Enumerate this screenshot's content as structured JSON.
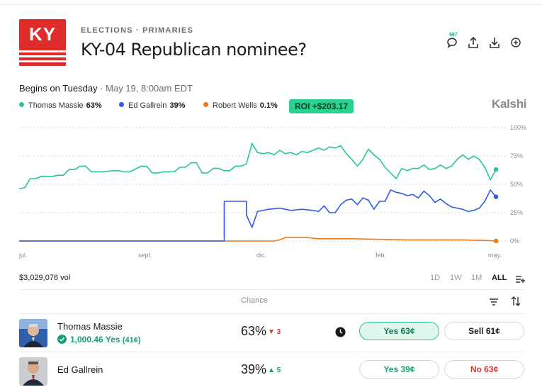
{
  "header": {
    "logo_text": "KY",
    "breadcrumb": "ELECTIONS · PRIMARIES",
    "title": "KY-04 Republican nominee?",
    "comment_count": "597",
    "icons": [
      "comment-icon",
      "share-icon",
      "download-icon",
      "add-circle-icon"
    ]
  },
  "schedule": {
    "label": "Begins on Tuesday",
    "date": " · May 19, 8:00am EDT"
  },
  "legend": [
    {
      "name": "Thomas Massie",
      "pct": "63%",
      "color": "#27c88a"
    },
    {
      "name": "Ed Gallrein",
      "pct": "39%",
      "color": "#2e5be6"
    },
    {
      "name": "Robert Wells",
      "pct": "0.1%",
      "color": "#f07a1a"
    }
  ],
  "roi": "ROI +$203.17",
  "brand": "Kalshi",
  "chart_data": {
    "type": "line",
    "y_ticks": [
      "100%",
      "75%",
      "50%",
      "25%",
      "0%"
    ],
    "ylim": [
      0,
      100
    ],
    "x_ticks": [
      "jul.",
      "sept.",
      "dic.",
      "feb.",
      "may."
    ],
    "grid": true,
    "series": [
      {
        "name": "Thomas Massie",
        "color": "#27c88a",
        "points": [
          [
            0,
            46
          ],
          [
            1,
            47
          ],
          [
            2,
            55
          ],
          [
            3,
            55
          ],
          [
            4,
            57
          ],
          [
            6,
            57
          ],
          [
            7,
            58
          ],
          [
            8,
            58
          ],
          [
            9,
            63
          ],
          [
            10,
            63
          ],
          [
            11,
            66
          ],
          [
            12,
            66
          ],
          [
            13,
            61
          ],
          [
            14,
            61
          ],
          [
            15,
            61
          ],
          [
            17,
            62
          ],
          [
            18,
            62
          ],
          [
            19,
            61
          ],
          [
            20,
            61
          ],
          [
            22,
            66
          ],
          [
            23,
            66
          ],
          [
            24,
            60
          ],
          [
            25,
            60
          ],
          [
            26,
            61
          ],
          [
            28,
            61
          ],
          [
            29,
            65
          ],
          [
            30,
            65
          ],
          [
            31,
            69
          ],
          [
            32,
            69
          ],
          [
            33,
            60
          ],
          [
            34,
            60
          ],
          [
            35,
            64
          ],
          [
            36,
            64
          ],
          [
            37,
            62
          ],
          [
            38,
            62
          ],
          [
            39,
            66
          ],
          [
            40,
            66
          ],
          [
            41,
            68
          ],
          [
            42,
            86
          ],
          [
            43,
            78
          ],
          [
            44,
            77
          ],
          [
            45,
            78
          ],
          [
            46,
            76
          ],
          [
            47,
            80
          ],
          [
            48,
            77
          ],
          [
            49,
            78
          ],
          [
            50,
            76
          ],
          [
            51,
            79
          ],
          [
            52,
            78
          ],
          [
            53,
            80
          ],
          [
            54,
            82
          ],
          [
            55,
            80
          ],
          [
            56,
            83
          ],
          [
            57,
            82
          ],
          [
            58,
            84
          ],
          [
            59,
            77
          ],
          [
            60,
            72
          ],
          [
            61,
            66
          ],
          [
            62,
            72
          ],
          [
            63,
            81
          ],
          [
            64,
            76
          ],
          [
            65,
            72
          ],
          [
            66,
            65
          ],
          [
            67,
            60
          ],
          [
            68,
            55
          ],
          [
            69,
            64
          ],
          [
            70,
            62
          ],
          [
            71,
            64
          ],
          [
            72,
            64
          ],
          [
            73,
            67
          ],
          [
            74,
            63
          ],
          [
            75,
            64
          ],
          [
            76,
            67
          ],
          [
            77,
            64
          ],
          [
            78,
            66
          ],
          [
            79,
            72
          ],
          [
            80,
            76
          ],
          [
            81,
            72
          ],
          [
            82,
            75
          ],
          [
            83,
            72
          ],
          [
            84,
            65
          ],
          [
            85,
            54
          ],
          [
            86,
            63
          ]
        ]
      },
      {
        "name": "Ed Gallrein",
        "color": "#2e5be6",
        "points": [
          [
            0,
            0
          ],
          [
            37,
            0
          ],
          [
            37,
            35
          ],
          [
            41,
            35
          ],
          [
            41,
            23
          ],
          [
            42,
            12
          ],
          [
            43,
            26
          ],
          [
            45,
            28
          ],
          [
            47,
            29
          ],
          [
            49,
            27
          ],
          [
            51,
            28
          ],
          [
            53,
            27
          ],
          [
            54,
            26
          ],
          [
            55,
            31
          ],
          [
            56,
            25
          ],
          [
            57,
            25
          ],
          [
            58,
            32
          ],
          [
            59,
            36
          ],
          [
            60,
            37
          ],
          [
            61,
            32
          ],
          [
            62,
            38
          ],
          [
            63,
            36
          ],
          [
            64,
            28
          ],
          [
            65,
            35
          ],
          [
            66,
            35
          ],
          [
            67,
            45
          ],
          [
            68,
            43
          ],
          [
            69,
            42
          ],
          [
            70,
            40
          ],
          [
            71,
            41
          ],
          [
            72,
            38
          ],
          [
            73,
            44
          ],
          [
            74,
            40
          ],
          [
            75,
            34
          ],
          [
            76,
            37
          ],
          [
            77,
            33
          ],
          [
            78,
            30
          ],
          [
            79,
            29
          ],
          [
            80,
            28
          ],
          [
            81,
            26
          ],
          [
            82,
            27
          ],
          [
            83,
            29
          ],
          [
            84,
            35
          ],
          [
            85,
            45
          ],
          [
            86,
            39
          ]
        ]
      },
      {
        "name": "Robert Wells",
        "color": "#f07a1a",
        "points": [
          [
            0,
            0
          ],
          [
            46,
            0
          ],
          [
            47,
            1
          ],
          [
            48,
            3
          ],
          [
            52,
            3
          ],
          [
            54,
            2
          ],
          [
            60,
            2
          ],
          [
            70,
            1
          ],
          [
            80,
            1
          ],
          [
            86,
            0.1
          ]
        ]
      }
    ]
  },
  "footer": {
    "volume": "$3,029,076 vol",
    "ranges": [
      "1D",
      "1W",
      "1M",
      "ALL"
    ],
    "active_range": "ALL",
    "chance_header": "Chance"
  },
  "outcomes": [
    {
      "name": "Thomas Massie",
      "holding": "1,000.46 Yes",
      "avg": "(41¢)",
      "chance": "63%",
      "delta": "▼ 3",
      "yes_label": "Yes 63¢",
      "side_label": "Sell 61¢"
    },
    {
      "name": "Ed Gallrein",
      "chance": "39%",
      "delta": "▲ 5",
      "yes_label": "Yes 39¢",
      "side_label": "No 63¢"
    }
  ]
}
